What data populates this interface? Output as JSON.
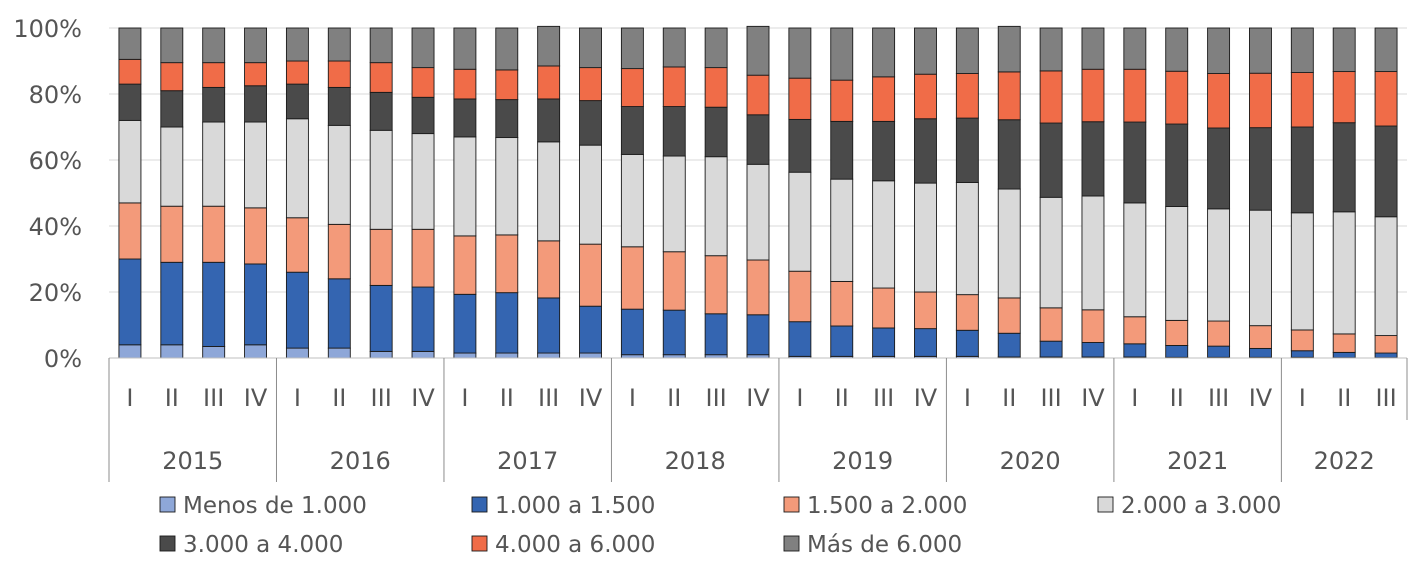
{
  "chart_data": {
    "type": "bar",
    "stacked": true,
    "percent_stacked": true,
    "title": "",
    "xlabel": "",
    "ylabel": "",
    "ylim": [
      0,
      100
    ],
    "y_ticks": [
      "0%",
      "20%",
      "40%",
      "60%",
      "80%",
      "100%"
    ],
    "grid": true,
    "legend_position": "bottom",
    "categories": [
      "I",
      "II",
      "III",
      "IV",
      "I",
      "II",
      "III",
      "IV",
      "I",
      "II",
      "III",
      "IV",
      "I",
      "II",
      "III",
      "IV",
      "I",
      "II",
      "III",
      "IV",
      "I",
      "II",
      "III",
      "IV",
      "I",
      "II",
      "III",
      "IV",
      "I",
      "II",
      "III"
    ],
    "years": [
      {
        "label": "2015",
        "count": 4
      },
      {
        "label": "2016",
        "count": 4
      },
      {
        "label": "2017",
        "count": 4
      },
      {
        "label": "2018",
        "count": 4
      },
      {
        "label": "2019",
        "count": 4
      },
      {
        "label": "2020",
        "count": 4
      },
      {
        "label": "2021",
        "count": 4
      },
      {
        "label": "2022",
        "count": 3
      }
    ],
    "series": [
      {
        "name": "Menos de 1.000",
        "color": "#8ea7d8",
        "values": [
          4.0,
          4.0,
          3.5,
          4.0,
          3.0,
          3.0,
          2.0,
          2.0,
          1.5,
          1.5,
          1.5,
          1.5,
          1.0,
          1.0,
          1.0,
          1.0,
          0.5,
          0.5,
          0.5,
          0.5,
          0.5,
          0.3,
          0.3,
          0.3,
          0.3,
          0.2,
          0.2,
          0.2,
          0.2,
          0.1,
          0.1
        ]
      },
      {
        "name": "1.000 a 1.500",
        "color": "#3465b1",
        "values": [
          26.0,
          25.0,
          25.5,
          24.5,
          23.0,
          21.0,
          20.0,
          19.5,
          17.8,
          18.3,
          16.7,
          14.2,
          13.8,
          13.5,
          12.4,
          12.1,
          10.5,
          9.2,
          8.6,
          8.4,
          7.9,
          7.2,
          4.8,
          4.4,
          4.0,
          3.6,
          3.4,
          2.7,
          2.0,
          1.6,
          1.4
        ]
      },
      {
        "name": "1.500 a 2.000",
        "color": "#f39a7a",
        "values": [
          17.0,
          17.0,
          17.0,
          17.0,
          16.5,
          16.5,
          17.0,
          17.5,
          17.7,
          17.5,
          17.3,
          18.8,
          18.9,
          17.7,
          17.6,
          16.6,
          15.3,
          13.5,
          12.1,
          11.1,
          10.8,
          10.7,
          10.1,
          9.9,
          8.2,
          7.6,
          7.6,
          6.9,
          6.3,
          5.6,
          5.3
        ]
      },
      {
        "name": "2.000 a 3.000",
        "color": "#d9d9d9",
        "values": [
          25.0,
          24.0,
          25.5,
          26.0,
          30.0,
          30.0,
          30.0,
          29.0,
          30.0,
          29.5,
          30.0,
          30.0,
          28.0,
          29.0,
          30.0,
          29.0,
          30.0,
          31.0,
          32.5,
          33.0,
          34.0,
          33.0,
          33.5,
          34.5,
          34.5,
          34.5,
          34.0,
          35.0,
          35.5,
          37.0,
          36.0
        ]
      },
      {
        "name": "3.000 a 4.000",
        "color": "#4a4a4a",
        "values": [
          11.0,
          11.0,
          10.5,
          11.0,
          10.5,
          11.5,
          11.5,
          11.0,
          11.5,
          11.5,
          13.0,
          13.5,
          14.5,
          15.0,
          15.0,
          15.0,
          16.0,
          17.5,
          18.0,
          19.5,
          19.5,
          21.0,
          22.5,
          22.5,
          24.5,
          25.0,
          24.5,
          25.0,
          26.0,
          27.0,
          27.5
        ]
      },
      {
        "name": "4.000 a 6.000",
        "color": "#f06c48",
        "values": [
          7.5,
          8.5,
          7.5,
          7.0,
          7.0,
          8.0,
          9.0,
          9.0,
          9.0,
          9.0,
          10.0,
          10.0,
          11.5,
          12.0,
          12.0,
          12.0,
          12.5,
          12.5,
          13.5,
          13.5,
          13.5,
          14.5,
          15.8,
          15.9,
          16.0,
          16.0,
          16.5,
          16.5,
          16.5,
          15.5,
          16.5
        ]
      },
      {
        "name": "Más de 6.000",
        "color": "#808080",
        "values": [
          9.5,
          10.5,
          10.5,
          10.5,
          10.0,
          10.0,
          10.5,
          12.0,
          12.5,
          12.7,
          12.0,
          12.0,
          12.3,
          11.8,
          12.0,
          14.8,
          15.2,
          15.8,
          14.8,
          14.0,
          13.8,
          13.8,
          13.0,
          12.5,
          12.5,
          13.1,
          13.8,
          13.7,
          13.5,
          13.2,
          13.2
        ]
      }
    ]
  }
}
